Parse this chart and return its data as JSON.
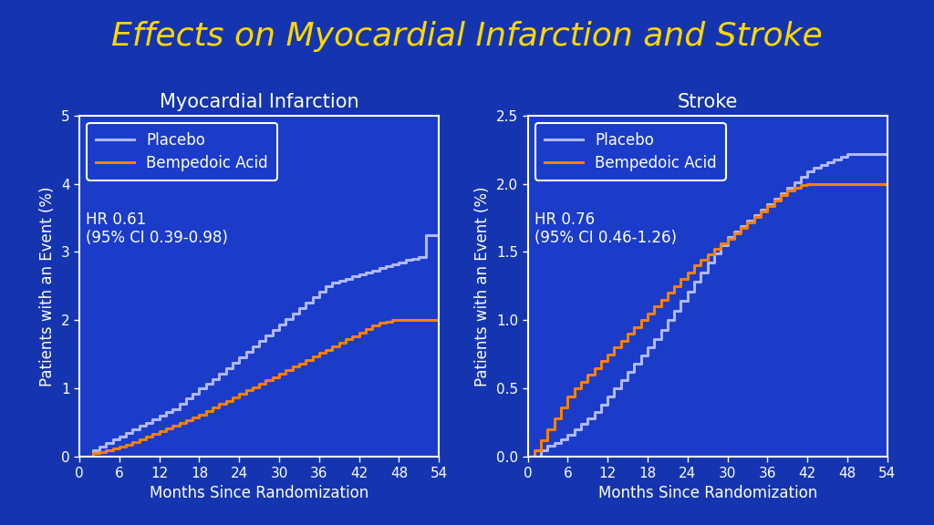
{
  "title": "Effects on Myocardial Infarction and Stroke",
  "title_color": "#FFD700",
  "title_fontsize": 26,
  "background_color": "#1535b0",
  "plot_background_color": "#1a3cc8",
  "subplot1_title": "Myocardial Infarction",
  "subplot2_title": "Stroke",
  "subplot_title_color": "white",
  "subplot_title_fontsize": 15,
  "xlabel": "Months Since Randomization",
  "ylabel": "Patients with an Event (%)",
  "axis_label_color": "white",
  "tick_color": "white",
  "tick_label_color": "white",
  "placebo_color": "#b0b8ff",
  "bempedoic_color": "#FF8000",
  "legend_label_placebo": "Placebo",
  "legend_label_bempedoic": "Bempedoic Acid",
  "hr_text_mi": "HR 0.61\n(95% CI 0.39-0.98)",
  "hr_text_stroke": "HR 0.76\n(95% CI 0.46-1.26)",
  "hr_text_color": "white",
  "hr_fontsize": 12,
  "plot1_ylim": [
    0,
    5
  ],
  "plot1_yticks": [
    0,
    1,
    2,
    3,
    4,
    5
  ],
  "plot2_ylim": [
    0,
    2.5
  ],
  "plot2_yticks": [
    0.0,
    0.5,
    1.0,
    1.5,
    2.0,
    2.5
  ],
  "xlim": [
    0,
    54
  ],
  "xticks": [
    0,
    6,
    12,
    18,
    24,
    30,
    36,
    42,
    48,
    54
  ],
  "mi_placebo_x": [
    0,
    2,
    3,
    4,
    5,
    6,
    7,
    8,
    9,
    10,
    11,
    12,
    13,
    14,
    15,
    16,
    17,
    18,
    19,
    20,
    21,
    22,
    23,
    24,
    25,
    26,
    27,
    28,
    29,
    30,
    31,
    32,
    33,
    34,
    35,
    36,
    37,
    38,
    39,
    40,
    41,
    42,
    43,
    44,
    45,
    46,
    47,
    48,
    49,
    50,
    51,
    52,
    53,
    54
  ],
  "mi_placebo_y": [
    0,
    0.1,
    0.15,
    0.2,
    0.25,
    0.3,
    0.35,
    0.4,
    0.45,
    0.5,
    0.55,
    0.6,
    0.65,
    0.7,
    0.78,
    0.85,
    0.92,
    1.0,
    1.07,
    1.14,
    1.22,
    1.3,
    1.38,
    1.46,
    1.54,
    1.62,
    1.7,
    1.78,
    1.86,
    1.94,
    2.02,
    2.1,
    2.18,
    2.26,
    2.34,
    2.42,
    2.5,
    2.55,
    2.58,
    2.61,
    2.64,
    2.67,
    2.7,
    2.73,
    2.76,
    2.79,
    2.82,
    2.85,
    2.88,
    2.9,
    2.92,
    3.25,
    3.25,
    3.25
  ],
  "mi_bempedoic_x": [
    0,
    2,
    3,
    4,
    5,
    6,
    7,
    8,
    9,
    10,
    11,
    12,
    13,
    14,
    15,
    16,
    17,
    18,
    19,
    20,
    21,
    22,
    23,
    24,
    25,
    26,
    27,
    28,
    29,
    30,
    31,
    32,
    33,
    34,
    35,
    36,
    37,
    38,
    39,
    40,
    41,
    42,
    43,
    44,
    45,
    46,
    47,
    48,
    49,
    50,
    51,
    52,
    53,
    54
  ],
  "mi_bempedoic_y": [
    0,
    0.05,
    0.07,
    0.1,
    0.12,
    0.15,
    0.18,
    0.22,
    0.26,
    0.3,
    0.34,
    0.38,
    0.42,
    0.46,
    0.5,
    0.54,
    0.58,
    0.62,
    0.67,
    0.72,
    0.77,
    0.82,
    0.87,
    0.92,
    0.97,
    1.02,
    1.07,
    1.12,
    1.17,
    1.22,
    1.27,
    1.32,
    1.37,
    1.42,
    1.47,
    1.52,
    1.57,
    1.62,
    1.67,
    1.72,
    1.77,
    1.82,
    1.87,
    1.92,
    1.96,
    1.98,
    2.0,
    2.0,
    2.0,
    2.0,
    2.0,
    2.0,
    2.0,
    2.0
  ],
  "stroke_placebo_x": [
    0,
    2,
    3,
    4,
    5,
    6,
    7,
    8,
    9,
    10,
    11,
    12,
    13,
    14,
    15,
    16,
    17,
    18,
    19,
    20,
    21,
    22,
    23,
    24,
    25,
    26,
    27,
    28,
    29,
    30,
    31,
    32,
    33,
    34,
    35,
    36,
    37,
    38,
    39,
    40,
    41,
    42,
    43,
    44,
    45,
    46,
    47,
    48,
    49,
    50,
    51,
    52,
    53,
    54
  ],
  "stroke_placebo_y": [
    0,
    0.05,
    0.08,
    0.1,
    0.13,
    0.16,
    0.2,
    0.24,
    0.28,
    0.33,
    0.38,
    0.44,
    0.5,
    0.56,
    0.62,
    0.68,
    0.74,
    0.8,
    0.86,
    0.93,
    1.0,
    1.07,
    1.14,
    1.21,
    1.28,
    1.35,
    1.42,
    1.49,
    1.55,
    1.61,
    1.65,
    1.69,
    1.73,
    1.77,
    1.81,
    1.85,
    1.89,
    1.93,
    1.97,
    2.01,
    2.05,
    2.09,
    2.12,
    2.14,
    2.16,
    2.18,
    2.2,
    2.22,
    2.22,
    2.22,
    2.22,
    2.22,
    2.22,
    2.22
  ],
  "stroke_bempedoic_x": [
    0,
    1,
    2,
    3,
    4,
    5,
    6,
    7,
    8,
    9,
    10,
    11,
    12,
    13,
    14,
    15,
    16,
    17,
    18,
    19,
    20,
    21,
    22,
    23,
    24,
    25,
    26,
    27,
    28,
    29,
    30,
    31,
    32,
    33,
    34,
    35,
    36,
    37,
    38,
    39,
    40,
    41,
    42,
    43,
    44,
    45,
    46,
    47,
    48,
    49,
    50,
    51,
    52,
    53,
    54
  ],
  "stroke_bempedoic_y": [
    0,
    0.05,
    0.12,
    0.2,
    0.28,
    0.36,
    0.44,
    0.5,
    0.55,
    0.6,
    0.65,
    0.7,
    0.75,
    0.8,
    0.85,
    0.9,
    0.95,
    1.0,
    1.05,
    1.1,
    1.15,
    1.2,
    1.25,
    1.3,
    1.35,
    1.4,
    1.44,
    1.48,
    1.52,
    1.56,
    1.6,
    1.64,
    1.68,
    1.72,
    1.76,
    1.8,
    1.84,
    1.88,
    1.92,
    1.95,
    1.97,
    1.99,
    2.0,
    2.0,
    2.0,
    2.0,
    2.0,
    2.0,
    2.0,
    2.0,
    2.0,
    2.0,
    2.0,
    2.0,
    2.0
  ],
  "line_width": 2.2,
  "legend_fontsize": 12,
  "axis_fontsize": 12,
  "tick_fontsize": 11,
  "spine_color": "white"
}
